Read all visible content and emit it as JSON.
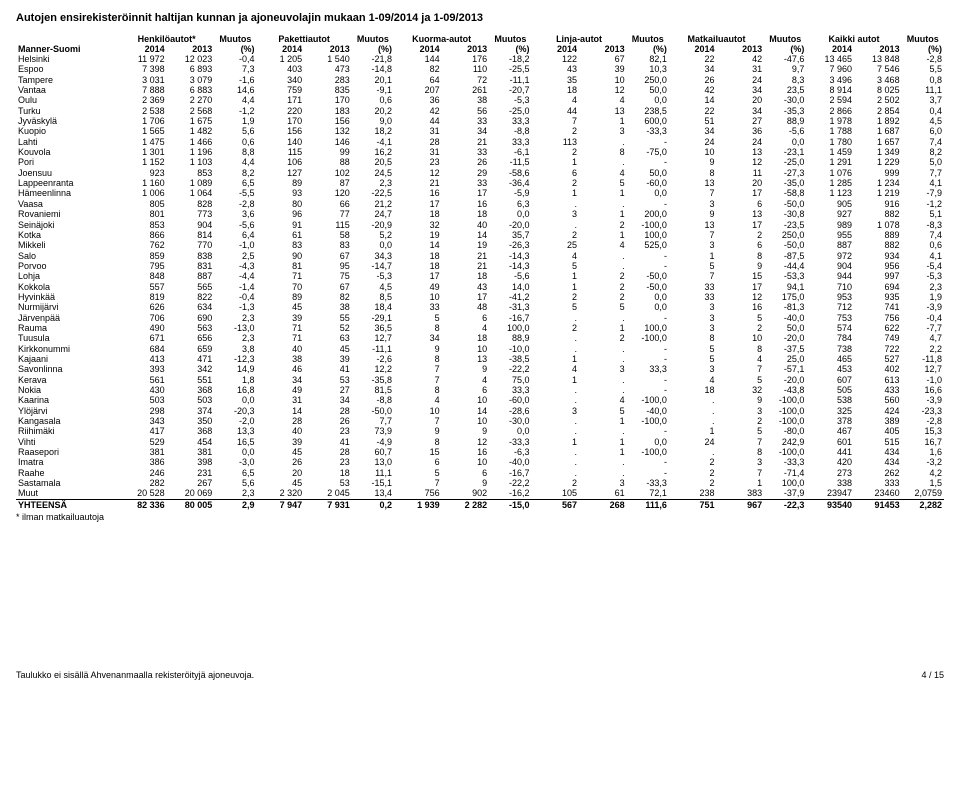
{
  "title": "Autojen ensirekisteröinnit haltijan kunnan ja ajoneuvolajin mukaan 1-09/2014 ja 1-09/2013",
  "rowLabel": "Manner-Suomi",
  "groups": [
    {
      "label": "Henkilöautot*",
      "muutos": "Muutos"
    },
    {
      "label": "Pakettiautot",
      "muutos": "Muutos"
    },
    {
      "label": "Kuorma-autot",
      "muutos": "Muutos"
    },
    {
      "label": "Linja-autot",
      "muutos": "Muutos"
    },
    {
      "label": "Matkailuautot",
      "muutos": "Muutos"
    },
    {
      "label": "Kaikki autot",
      "muutos": "Muutos"
    }
  ],
  "yearCols": [
    "2014",
    "2013",
    "(%)"
  ],
  "footnoteTop": "* ilman matkailuautoja",
  "footnoteBottom": "Taulukko ei sisällä Ahvenanmaalla rekisteröityjä ajoneuvoja.",
  "pageNum": "4 / 15",
  "rows": [
    [
      "Helsinki",
      "11 972",
      "12 023",
      "-0,4",
      "1 205",
      "1 540",
      "-21,8",
      "144",
      "176",
      "-18,2",
      "122",
      "67",
      "82,1",
      "22",
      "42",
      "-47,6",
      "13 465",
      "13 848",
      "-2,8"
    ],
    [
      "Espoo",
      "7 398",
      "6 893",
      "7,3",
      "403",
      "473",
      "-14,8",
      "82",
      "110",
      "-25,5",
      "43",
      "39",
      "10,3",
      "34",
      "31",
      "9,7",
      "7 960",
      "7 546",
      "5,5"
    ],
    [
      "Tampere",
      "3 031",
      "3 079",
      "-1,6",
      "340",
      "283",
      "20,1",
      "64",
      "72",
      "-11,1",
      "35",
      "10",
      "250,0",
      "26",
      "24",
      "8,3",
      "3 496",
      "3 468",
      "0,8"
    ],
    [
      "Vantaa",
      "7 888",
      "6 883",
      "14,6",
      "759",
      "835",
      "-9,1",
      "207",
      "261",
      "-20,7",
      "18",
      "12",
      "50,0",
      "42",
      "34",
      "23,5",
      "8 914",
      "8 025",
      "11,1"
    ],
    [
      "Oulu",
      "2 369",
      "2 270",
      "4,4",
      "171",
      "170",
      "0,6",
      "36",
      "38",
      "-5,3",
      "4",
      "4",
      "0,0",
      "14",
      "20",
      "-30,0",
      "2 594",
      "2 502",
      "3,7"
    ],
    [
      "Turku",
      "2 538",
      "2 568",
      "-1,2",
      "220",
      "183",
      "20,2",
      "42",
      "56",
      "-25,0",
      "44",
      "13",
      "238,5",
      "22",
      "34",
      "-35,3",
      "2 866",
      "2 854",
      "0,4"
    ],
    [
      "Jyväskylä",
      "1 706",
      "1 675",
      "1,9",
      "170",
      "156",
      "9,0",
      "44",
      "33",
      "33,3",
      "7",
      "1",
      "600,0",
      "51",
      "27",
      "88,9",
      "1 978",
      "1 892",
      "4,5"
    ],
    [
      "Kuopio",
      "1 565",
      "1 482",
      "5,6",
      "156",
      "132",
      "18,2",
      "31",
      "34",
      "-8,8",
      "2",
      "3",
      "-33,3",
      "34",
      "36",
      "-5,6",
      "1 788",
      "1 687",
      "6,0"
    ],
    [
      "Lahti",
      "1 475",
      "1 466",
      "0,6",
      "140",
      "146",
      "-4,1",
      "28",
      "21",
      "33,3",
      "113",
      ".",
      "-",
      "24",
      "24",
      "0,0",
      "1 780",
      "1 657",
      "7,4"
    ],
    [
      "Kouvola",
      "1 301",
      "1 196",
      "8,8",
      "115",
      "99",
      "16,2",
      "31",
      "33",
      "-6,1",
      "2",
      "8",
      "-75,0",
      "10",
      "13",
      "-23,1",
      "1 459",
      "1 349",
      "8,2"
    ],
    [
      "Pori",
      "1 152",
      "1 103",
      "4,4",
      "106",
      "88",
      "20,5",
      "23",
      "26",
      "-11,5",
      "1",
      ".",
      "-",
      "9",
      "12",
      "-25,0",
      "1 291",
      "1 229",
      "5,0"
    ],
    [
      "Joensuu",
      "923",
      "853",
      "8,2",
      "127",
      "102",
      "24,5",
      "12",
      "29",
      "-58,6",
      "6",
      "4",
      "50,0",
      "8",
      "11",
      "-27,3",
      "1 076",
      "999",
      "7,7"
    ],
    [
      "Lappeenranta",
      "1 160",
      "1 089",
      "6,5",
      "89",
      "87",
      "2,3",
      "21",
      "33",
      "-36,4",
      "2",
      "5",
      "-60,0",
      "13",
      "20",
      "-35,0",
      "1 285",
      "1 234",
      "4,1"
    ],
    [
      "Hämeenlinna",
      "1 006",
      "1 064",
      "-5,5",
      "93",
      "120",
      "-22,5",
      "16",
      "17",
      "-5,9",
      "1",
      "1",
      "0,0",
      "7",
      "17",
      "-58,8",
      "1 123",
      "1 219",
      "-7,9"
    ],
    [
      "Vaasa",
      "805",
      "828",
      "-2,8",
      "80",
      "66",
      "21,2",
      "17",
      "16",
      "6,3",
      ".",
      ".",
      "-",
      "3",
      "6",
      "-50,0",
      "905",
      "916",
      "-1,2"
    ],
    [
      "Rovaniemi",
      "801",
      "773",
      "3,6",
      "96",
      "77",
      "24,7",
      "18",
      "18",
      "0,0",
      "3",
      "1",
      "200,0",
      "9",
      "13",
      "-30,8",
      "927",
      "882",
      "5,1"
    ],
    [
      "Seinäjoki",
      "853",
      "904",
      "-5,6",
      "91",
      "115",
      "-20,9",
      "32",
      "40",
      "-20,0",
      ".",
      "2",
      "-100,0",
      "13",
      "17",
      "-23,5",
      "989",
      "1 078",
      "-8,3"
    ],
    [
      "Kotka",
      "866",
      "814",
      "6,4",
      "61",
      "58",
      "5,2",
      "19",
      "14",
      "35,7",
      "2",
      "1",
      "100,0",
      "7",
      "2",
      "250,0",
      "955",
      "889",
      "7,4"
    ],
    [
      "Mikkeli",
      "762",
      "770",
      "-1,0",
      "83",
      "83",
      "0,0",
      "14",
      "19",
      "-26,3",
      "25",
      "4",
      "525,0",
      "3",
      "6",
      "-50,0",
      "887",
      "882",
      "0,6"
    ],
    [
      "Salo",
      "859",
      "838",
      "2,5",
      "90",
      "67",
      "34,3",
      "18",
      "21",
      "-14,3",
      "4",
      ".",
      "-",
      "1",
      "8",
      "-87,5",
      "972",
      "934",
      "4,1"
    ],
    [
      "Porvoo",
      "795",
      "831",
      "-4,3",
      "81",
      "95",
      "-14,7",
      "18",
      "21",
      "-14,3",
      "5",
      ".",
      "-",
      "5",
      "9",
      "-44,4",
      "904",
      "956",
      "-5,4"
    ],
    [
      "Lohja",
      "848",
      "887",
      "-4,4",
      "71",
      "75",
      "-5,3",
      "17",
      "18",
      "-5,6",
      "1",
      "2",
      "-50,0",
      "7",
      "15",
      "-53,3",
      "944",
      "997",
      "-5,3"
    ],
    [
      "Kokkola",
      "557",
      "565",
      "-1,4",
      "70",
      "67",
      "4,5",
      "49",
      "43",
      "14,0",
      "1",
      "2",
      "-50,0",
      "33",
      "17",
      "94,1",
      "710",
      "694",
      "2,3"
    ],
    [
      "Hyvinkää",
      "819",
      "822",
      "-0,4",
      "89",
      "82",
      "8,5",
      "10",
      "17",
      "-41,2",
      "2",
      "2",
      "0,0",
      "33",
      "12",
      "175,0",
      "953",
      "935",
      "1,9"
    ],
    [
      "Nurmijärvi",
      "626",
      "634",
      "-1,3",
      "45",
      "38",
      "18,4",
      "33",
      "48",
      "-31,3",
      "5",
      "5",
      "0,0",
      "3",
      "16",
      "-81,3",
      "712",
      "741",
      "-3,9"
    ],
    [
      "Järvenpää",
      "706",
      "690",
      "2,3",
      "39",
      "55",
      "-29,1",
      "5",
      "6",
      "-16,7",
      ".",
      ".",
      "-",
      "3",
      "5",
      "-40,0",
      "753",
      "756",
      "-0,4"
    ],
    [
      "Rauma",
      "490",
      "563",
      "-13,0",
      "71",
      "52",
      "36,5",
      "8",
      "4",
      "100,0",
      "2",
      "1",
      "100,0",
      "3",
      "2",
      "50,0",
      "574",
      "622",
      "-7,7"
    ],
    [
      "Tuusula",
      "671",
      "656",
      "2,3",
      "71",
      "63",
      "12,7",
      "34",
      "18",
      "88,9",
      ".",
      "2",
      "-100,0",
      "8",
      "10",
      "-20,0",
      "784",
      "749",
      "4,7"
    ],
    [
      "Kirkkonummi",
      "684",
      "659",
      "3,8",
      "40",
      "45",
      "-11,1",
      "9",
      "10",
      "-10,0",
      ".",
      ".",
      "-",
      "5",
      "8",
      "-37,5",
      "738",
      "722",
      "2,2"
    ],
    [
      "Kajaani",
      "413",
      "471",
      "-12,3",
      "38",
      "39",
      "-2,6",
      "8",
      "13",
      "-38,5",
      "1",
      ".",
      "-",
      "5",
      "4",
      "25,0",
      "465",
      "527",
      "-11,8"
    ],
    [
      "Savonlinna",
      "393",
      "342",
      "14,9",
      "46",
      "41",
      "12,2",
      "7",
      "9",
      "-22,2",
      "4",
      "3",
      "33,3",
      "3",
      "7",
      "-57,1",
      "453",
      "402",
      "12,7"
    ],
    [
      "Kerava",
      "561",
      "551",
      "1,8",
      "34",
      "53",
      "-35,8",
      "7",
      "4",
      "75,0",
      "1",
      ".",
      "-",
      "4",
      "5",
      "-20,0",
      "607",
      "613",
      "-1,0"
    ],
    [
      "Nokia",
      "430",
      "368",
      "16,8",
      "49",
      "27",
      "81,5",
      "8",
      "6",
      "33,3",
      ".",
      ".",
      "-",
      "18",
      "32",
      "-43,8",
      "505",
      "433",
      "16,6"
    ],
    [
      "Kaarina",
      "503",
      "503",
      "0,0",
      "31",
      "34",
      "-8,8",
      "4",
      "10",
      "-60,0",
      ".",
      "4",
      "-100,0",
      ".",
      "9",
      "-100,0",
      "538",
      "560",
      "-3,9"
    ],
    [
      "Ylöjärvi",
      "298",
      "374",
      "-20,3",
      "14",
      "28",
      "-50,0",
      "10",
      "14",
      "-28,6",
      "3",
      "5",
      "-40,0",
      ".",
      "3",
      "-100,0",
      "325",
      "424",
      "-23,3"
    ],
    [
      "Kangasala",
      "343",
      "350",
      "-2,0",
      "28",
      "26",
      "7,7",
      "7",
      "10",
      "-30,0",
      ".",
      "1",
      "-100,0",
      ".",
      "2",
      "-100,0",
      "378",
      "389",
      "-2,8"
    ],
    [
      "Riihimäki",
      "417",
      "368",
      "13,3",
      "40",
      "23",
      "73,9",
      "9",
      "9",
      "0,0",
      ".",
      ".",
      "-",
      "1",
      "5",
      "-80,0",
      "467",
      "405",
      "15,3"
    ],
    [
      "Vihti",
      "529",
      "454",
      "16,5",
      "39",
      "41",
      "-4,9",
      "8",
      "12",
      "-33,3",
      "1",
      "1",
      "0,0",
      "24",
      "7",
      "242,9",
      "601",
      "515",
      "16,7"
    ],
    [
      "Raasepori",
      "381",
      "381",
      "0,0",
      "45",
      "28",
      "60,7",
      "15",
      "16",
      "-6,3",
      ".",
      "1",
      "-100,0",
      ".",
      "8",
      "-100,0",
      "441",
      "434",
      "1,6"
    ],
    [
      "Imatra",
      "386",
      "398",
      "-3,0",
      "26",
      "23",
      "13,0",
      "6",
      "10",
      "-40,0",
      ".",
      ".",
      "-",
      "2",
      "3",
      "-33,3",
      "420",
      "434",
      "-3,2"
    ],
    [
      "Raahe",
      "246",
      "231",
      "6,5",
      "20",
      "18",
      "11,1",
      "5",
      "6",
      "-16,7",
      ".",
      ".",
      "-",
      "2",
      "7",
      "-71,4",
      "273",
      "262",
      "4,2"
    ],
    [
      "Sastamala",
      "282",
      "267",
      "5,6",
      "45",
      "53",
      "-15,1",
      "7",
      "9",
      "-22,2",
      "2",
      "3",
      "-33,3",
      "2",
      "1",
      "100,0",
      "338",
      "333",
      "1,5"
    ],
    [
      "Muut",
      "20 528",
      "20 069",
      "2,3",
      "2 320",
      "2 045",
      "13,4",
      "756",
      "902",
      "-16,2",
      "105",
      "61",
      "72,1",
      "238",
      "383",
      "-37,9",
      "23947",
      "23460",
      "2,0759"
    ]
  ],
  "total": [
    "YHTEENSÄ",
    "82 336",
    "80 005",
    "2,9",
    "7 947",
    "7 931",
    "0,2",
    "1 939",
    "2 282",
    "-15,0",
    "567",
    "268",
    "111,6",
    "751",
    "967",
    "-22,3",
    "93540",
    "91453",
    "2,282"
  ]
}
